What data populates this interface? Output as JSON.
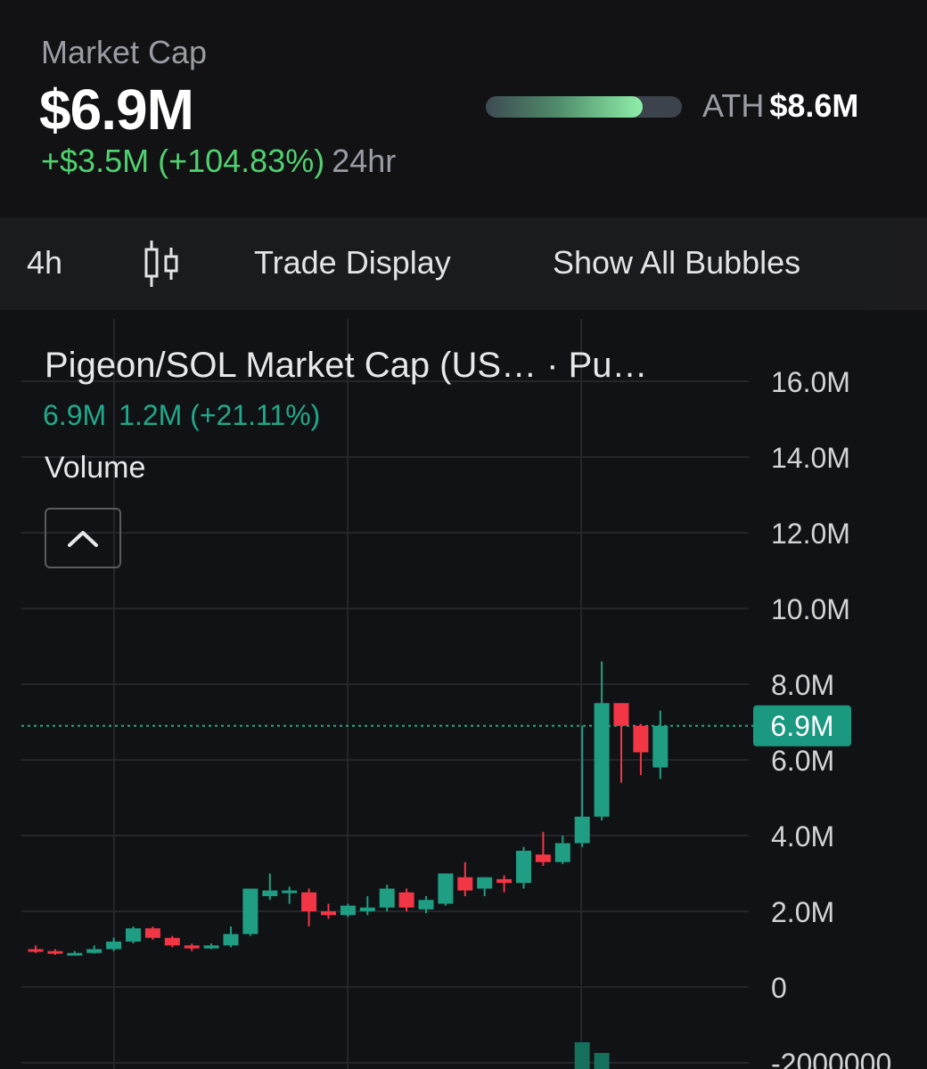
{
  "header": {
    "label": "Market Cap",
    "value": "$6.9M",
    "change": "+$3.5M (+104.83%)",
    "period": "24hr",
    "ath_label": "ATH",
    "ath_value": "$8.6M",
    "ath_progress": 0.8
  },
  "toolbar": {
    "interval": "4h",
    "candle_icon": "candlestick-icon",
    "trade_display": "Trade Display",
    "show_bubbles": "Show All Bubbles"
  },
  "legend": {
    "title": "Pigeon/SOL Market Cap (US…  · Pu…",
    "last_value": "6.9M",
    "change": "1.2M (+21.11%)",
    "volume_label": "Volume",
    "collapse_icon": "chevron-up-icon"
  },
  "colors": {
    "up": "#1f9e84",
    "down": "#f23645",
    "accent_green": "#4fd16f",
    "last_price_badge": "#1a9980"
  },
  "chart_data": {
    "type": "candlestick",
    "y_axis_ticks": [
      "16.0M",
      "14.0M",
      "12.0M",
      "10.0M",
      "8.0M",
      "6.0M",
      "4.0M",
      "2.0M",
      "0",
      "-2000000"
    ],
    "y_axis_values": [
      16000000,
      14000000,
      12000000,
      10000000,
      8000000,
      6000000,
      4000000,
      2000000,
      0,
      -2000000
    ],
    "ylim": [
      -2000000,
      17000000
    ],
    "last_value": 6900000,
    "last_value_label": "6.9M",
    "candles": [
      {
        "o": 1.0,
        "h": 1.1,
        "l": 0.9,
        "c": 0.95
      },
      {
        "o": 0.95,
        "h": 1.0,
        "l": 0.85,
        "c": 0.88
      },
      {
        "o": 0.88,
        "h": 0.95,
        "l": 0.85,
        "c": 0.9
      },
      {
        "o": 0.9,
        "h": 1.1,
        "l": 0.88,
        "c": 1.0
      },
      {
        "o": 1.0,
        "h": 1.3,
        "l": 0.95,
        "c": 1.2
      },
      {
        "o": 1.2,
        "h": 1.6,
        "l": 1.15,
        "c": 1.55
      },
      {
        "o": 1.55,
        "h": 1.6,
        "l": 1.25,
        "c": 1.3
      },
      {
        "o": 1.3,
        "h": 1.35,
        "l": 1.05,
        "c": 1.1
      },
      {
        "o": 1.1,
        "h": 1.15,
        "l": 0.95,
        "c": 1.02
      },
      {
        "o": 1.02,
        "h": 1.15,
        "l": 1.0,
        "c": 1.1
      },
      {
        "o": 1.1,
        "h": 1.6,
        "l": 1.05,
        "c": 1.4
      },
      {
        "o": 1.4,
        "h": 2.6,
        "l": 1.35,
        "c": 2.6
      },
      {
        "o": 2.4,
        "h": 3.0,
        "l": 2.3,
        "c": 2.55
      },
      {
        "o": 2.5,
        "h": 2.65,
        "l": 2.2,
        "c": 2.55
      },
      {
        "o": 2.5,
        "h": 2.6,
        "l": 1.6,
        "c": 2.0
      },
      {
        "o": 2.0,
        "h": 2.2,
        "l": 1.8,
        "c": 1.9
      },
      {
        "o": 1.9,
        "h": 2.2,
        "l": 1.85,
        "c": 2.15
      },
      {
        "o": 2.0,
        "h": 2.4,
        "l": 1.9,
        "c": 2.1
      },
      {
        "o": 2.1,
        "h": 2.7,
        "l": 2.0,
        "c": 2.6
      },
      {
        "o": 2.5,
        "h": 2.6,
        "l": 2.0,
        "c": 2.1
      },
      {
        "o": 2.05,
        "h": 2.4,
        "l": 1.95,
        "c": 2.3
      },
      {
        "o": 2.2,
        "h": 3.0,
        "l": 2.15,
        "c": 3.0
      },
      {
        "o": 2.9,
        "h": 3.3,
        "l": 2.4,
        "c": 2.55
      },
      {
        "o": 2.6,
        "h": 2.9,
        "l": 2.4,
        "c": 2.9
      },
      {
        "o": 2.85,
        "h": 2.95,
        "l": 2.5,
        "c": 2.75
      },
      {
        "o": 2.75,
        "h": 3.7,
        "l": 2.6,
        "c": 3.6
      },
      {
        "o": 3.5,
        "h": 4.1,
        "l": 3.2,
        "c": 3.3
      },
      {
        "o": 3.3,
        "h": 4.0,
        "l": 3.25,
        "c": 3.8
      },
      {
        "o": 3.8,
        "h": 6.9,
        "l": 3.7,
        "c": 4.5
      },
      {
        "o": 4.5,
        "h": 8.6,
        "l": 4.4,
        "c": 7.5
      },
      {
        "o": 7.5,
        "h": 7.5,
        "l": 5.4,
        "c": 6.9
      },
      {
        "o": 6.9,
        "h": 6.95,
        "l": 5.6,
        "c": 6.2
      },
      {
        "o": 5.8,
        "h": 7.3,
        "l": 5.5,
        "c": 6.9
      }
    ],
    "volume_bars": [
      {
        "index": 28,
        "height": 0.5
      },
      {
        "index": 29,
        "height": 0.3
      }
    ]
  }
}
